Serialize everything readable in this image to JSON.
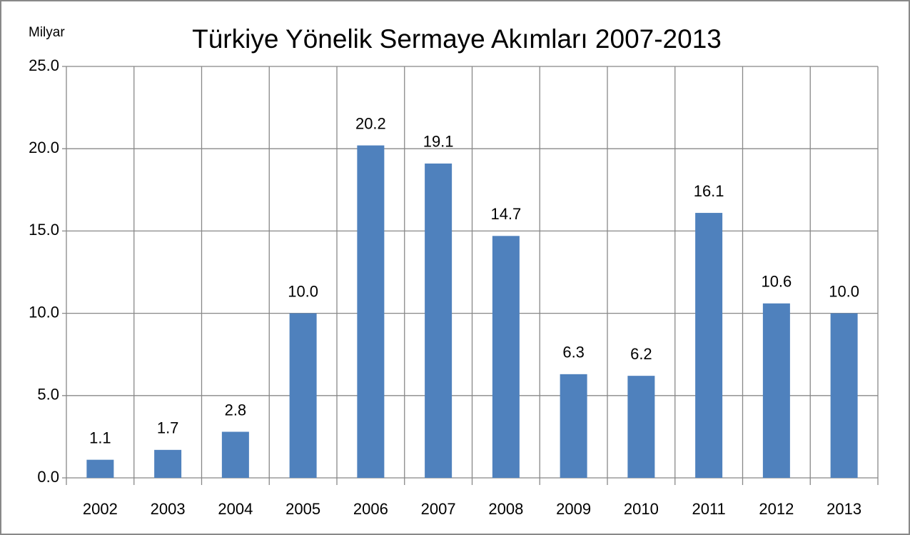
{
  "chart_data": {
    "type": "bar",
    "title": "Türkiye Yönelik Sermaye Akımları 2007-2013",
    "y_axis_label": "Milyar",
    "categories": [
      "2002",
      "2003",
      "2004",
      "2005",
      "2006",
      "2007",
      "2008",
      "2009",
      "2010",
      "2011",
      "2012",
      "2013"
    ],
    "values": [
      1.1,
      1.7,
      2.8,
      10,
      20.2,
      19.1,
      14.7,
      6.3,
      6.2,
      16.1,
      10.6,
      10
    ],
    "value_labels": [
      "1.1",
      "1.7",
      "2.8",
      "10.0",
      "20.2",
      "19.1",
      "14.7",
      "6.3",
      "6.2",
      "16.1",
      "10.6",
      "10.0"
    ],
    "color": "#4f81bd",
    "ylim": [
      0,
      25
    ],
    "yticks": [
      {
        "value": 0,
        "label": "0.0"
      },
      {
        "value": 5,
        "label": "5.0"
      },
      {
        "value": 10,
        "label": "10.0"
      },
      {
        "value": 15,
        "label": "15.0"
      },
      {
        "value": 20,
        "label": "20.0"
      },
      {
        "value": 25,
        "label": "25.0"
      }
    ],
    "grid": true
  }
}
